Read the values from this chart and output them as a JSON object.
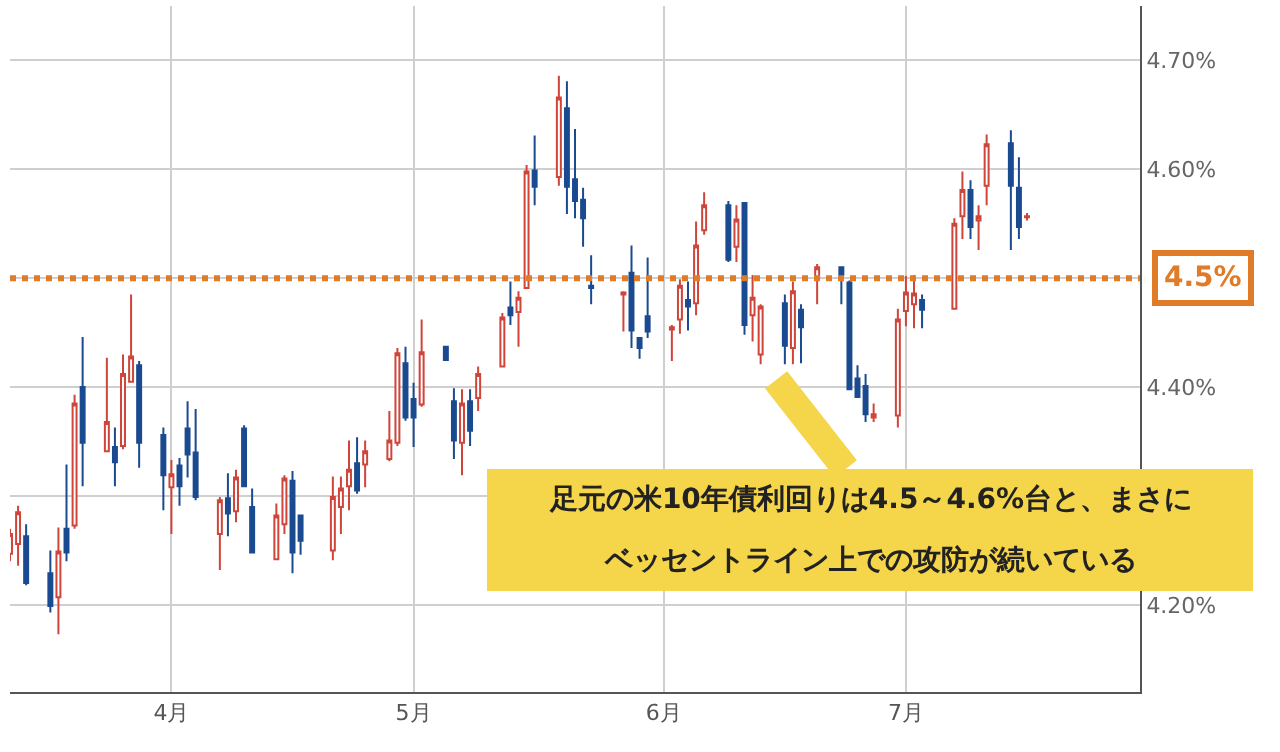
{
  "chart_data": {
    "type": "candlestick",
    "x": [
      "--03-12",
      "--03-13",
      "--03-14",
      "--03-17",
      "--03-18",
      "--03-19",
      "--03-20",
      "--03-21",
      "--03-24",
      "--03-25",
      "--03-26",
      "--03-27",
      "--03-28",
      "--03-31",
      "--04-01",
      "--04-02",
      "--04-03",
      "--04-04",
      "--04-07",
      "--04-08",
      "--04-09",
      "--04-10",
      "--04-11",
      "--04-14",
      "--04-15",
      "--04-16",
      "--04-17",
      "--04-21",
      "--04-22",
      "--04-23",
      "--04-24",
      "--04-25",
      "--04-28",
      "--04-29",
      "--04-30",
      "--05-01",
      "--05-02",
      "--05-05",
      "--05-06",
      "--05-07",
      "--05-08",
      "--05-09",
      "--05-12",
      "--05-13",
      "--05-14",
      "--05-15",
      "--05-16",
      "--05-19",
      "--05-20",
      "--05-21",
      "--05-22",
      "--05-23",
      "--05-27",
      "--05-28",
      "--05-29",
      "--05-30",
      "--06-02",
      "--06-03",
      "--06-04",
      "--06-05",
      "--06-06",
      "--06-09",
      "--06-10",
      "--06-11",
      "--06-12",
      "--06-13",
      "--06-16",
      "--06-17",
      "--06-18",
      "--06-20",
      "--06-23",
      "--06-24",
      "--06-25",
      "--06-26",
      "--06-27",
      "--06-30",
      "--07-01",
      "--07-02",
      "--07-03",
      "--07-07",
      "--07-08",
      "--07-09",
      "--07-10",
      "--07-11",
      "--07-14",
      "--07-15",
      "--07-16"
    ],
    "ohlc": [
      [
        4.247,
        4.27,
        4.24,
        4.265
      ],
      [
        4.256,
        4.291,
        4.236,
        4.285
      ],
      [
        4.263,
        4.274,
        4.218,
        4.22
      ],
      [
        4.229,
        4.25,
        4.193,
        4.199
      ],
      [
        4.207,
        4.271,
        4.173,
        4.249
      ],
      [
        4.27,
        4.329,
        4.24,
        4.248
      ],
      [
        4.273,
        4.393,
        4.27,
        4.385
      ],
      [
        4.4,
        4.446,
        4.309,
        4.349
      ],
      [
        4.341,
        4.427,
        4.341,
        4.368
      ],
      [
        4.345,
        4.363,
        4.309,
        4.331
      ],
      [
        4.346,
        4.43,
        4.343,
        4.412
      ],
      [
        4.405,
        4.485,
        4.404,
        4.428
      ],
      [
        4.42,
        4.424,
        4.326,
        4.349
      ],
      [
        4.356,
        4.363,
        4.287,
        4.319
      ],
      [
        4.308,
        4.333,
        4.265,
        4.32
      ],
      [
        4.328,
        4.335,
        4.291,
        4.309
      ],
      [
        4.362,
        4.387,
        4.317,
        4.338
      ],
      [
        4.34,
        4.38,
        4.296,
        4.299
      ],
      [
        4.265,
        4.299,
        4.232,
        4.296
      ],
      [
        4.298,
        4.321,
        4.263,
        4.284
      ],
      [
        4.286,
        4.324,
        4.276,
        4.317
      ],
      [
        4.362,
        4.365,
        4.308,
        4.309
      ],
      [
        4.29,
        4.307,
        4.248,
        4.248
      ],
      [
        4.242,
        4.293,
        4.242,
        4.282
      ],
      [
        4.274,
        4.319,
        4.265,
        4.316
      ],
      [
        4.314,
        4.323,
        4.229,
        4.248
      ],
      [
        4.282,
        4.283,
        4.246,
        4.259
      ],
      [
        4.25,
        4.318,
        4.241,
        4.299
      ],
      [
        4.29,
        4.318,
        4.265,
        4.307
      ],
      [
        4.309,
        4.351,
        4.287,
        4.324
      ],
      [
        4.33,
        4.354,
        4.302,
        4.305
      ],
      [
        4.329,
        4.351,
        4.308,
        4.341
      ],
      [
        4.334,
        4.378,
        4.332,
        4.351
      ],
      [
        4.349,
        4.436,
        4.346,
        4.431
      ],
      [
        4.422,
        4.437,
        4.369,
        4.372
      ],
      [
        4.389,
        4.404,
        4.345,
        4.372
      ],
      [
        4.384,
        4.462,
        4.382,
        4.432
      ],
      [
        4.437,
        4.437,
        4.424,
        4.425
      ],
      [
        4.387,
        4.399,
        4.334,
        4.351
      ],
      [
        4.349,
        4.398,
        4.319,
        4.385
      ],
      [
        4.387,
        4.398,
        4.346,
        4.36
      ],
      [
        4.39,
        4.419,
        4.378,
        4.412
      ],
      [
        4.419,
        4.468,
        4.419,
        4.464
      ],
      [
        4.473,
        4.497,
        4.457,
        4.466
      ],
      [
        4.469,
        4.488,
        4.437,
        4.482
      ],
      [
        4.491,
        4.604,
        4.491,
        4.598
      ],
      [
        4.599,
        4.631,
        4.567,
        4.584
      ],
      [
        4.593,
        4.686,
        4.585,
        4.666
      ],
      [
        4.656,
        4.681,
        4.559,
        4.584
      ],
      [
        4.591,
        4.637,
        4.555,
        4.571
      ],
      [
        4.572,
        4.583,
        4.529,
        4.555
      ],
      [
        4.493,
        4.521,
        4.476,
        4.491
      ],
      [
        4.485,
        4.488,
        4.451,
        4.487
      ],
      [
        4.505,
        4.53,
        4.436,
        4.452
      ],
      [
        4.445,
        4.445,
        4.426,
        4.436
      ],
      [
        4.465,
        4.519,
        4.445,
        4.451
      ],
      [
        4.453,
        4.457,
        4.424,
        4.455
      ],
      [
        4.462,
        4.499,
        4.449,
        4.493
      ],
      [
        4.48,
        4.497,
        4.452,
        4.474
      ],
      [
        4.477,
        4.552,
        4.466,
        4.53
      ],
      [
        4.544,
        4.579,
        4.54,
        4.567
      ],
      [
        4.567,
        4.571,
        4.515,
        4.517
      ],
      [
        4.529,
        4.567,
        4.515,
        4.554
      ],
      [
        4.569,
        4.569,
        4.448,
        4.457
      ],
      [
        4.466,
        4.503,
        4.442,
        4.482
      ],
      [
        4.43,
        4.476,
        4.421,
        4.474
      ],
      [
        4.477,
        4.485,
        4.421,
        4.438
      ],
      [
        4.436,
        4.497,
        4.421,
        4.488
      ],
      [
        4.471,
        4.476,
        4.422,
        4.455
      ],
      [
        4.5,
        4.513,
        4.476,
        4.51
      ],
      [
        4.51,
        4.51,
        4.476,
        4.503
      ],
      [
        4.496,
        4.498,
        4.398,
        4.398
      ],
      [
        4.408,
        4.42,
        4.391,
        4.391
      ],
      [
        4.401,
        4.412,
        4.368,
        4.375
      ],
      [
        4.372,
        4.385,
        4.368,
        4.375
      ],
      [
        4.374,
        4.472,
        4.363,
        4.462
      ],
      [
        4.47,
        4.502,
        4.456,
        4.487
      ],
      [
        4.476,
        4.503,
        4.454,
        4.486
      ],
      [
        4.48,
        4.485,
        4.454,
        4.471
      ],
      [
        4.472,
        4.555,
        4.472,
        4.55
      ],
      [
        4.557,
        4.598,
        4.536,
        4.581
      ],
      [
        4.581,
        4.59,
        4.536,
        4.547
      ],
      [
        4.553,
        4.567,
        4.526,
        4.557
      ],
      [
        4.585,
        4.632,
        4.567,
        4.623
      ],
      [
        4.624,
        4.636,
        4.526,
        4.585
      ],
      [
        4.583,
        4.611,
        4.536,
        4.547
      ],
      [
        4.556,
        4.56,
        4.553,
        4.557
      ]
    ],
    "xlim": [
      "--03-12",
      "--07-30"
    ],
    "xticks": [
      {
        "value": "--04-01",
        "label": "4月"
      },
      {
        "value": "--05-01",
        "label": "5月"
      },
      {
        "value": "--06-01",
        "label": "6月"
      },
      {
        "value": "--07-01",
        "label": "7月"
      }
    ],
    "ylim": [
      4.12,
      4.75
    ],
    "yticks": [
      {
        "value": 4.2,
        "label": "4.20%"
      },
      {
        "value": 4.3,
        "label": null
      },
      {
        "value": 4.4,
        "label": "4.40%"
      },
      {
        "value": 4.5,
        "label": null
      },
      {
        "value": 4.6,
        "label": "4.60%"
      },
      {
        "value": 4.7,
        "label": "4.70%"
      }
    ],
    "grid": true,
    "ref_lines": [
      {
        "axis": "y",
        "value": 4.5,
        "label": "4.5%",
        "color": "#e07b28",
        "line_style": "dotted"
      }
    ],
    "annotations": [
      "足元の米10年債利回りは4.5～4.6%台と、まさに",
      "ベッセントライン上での攻防が続いている"
    ]
  }
}
